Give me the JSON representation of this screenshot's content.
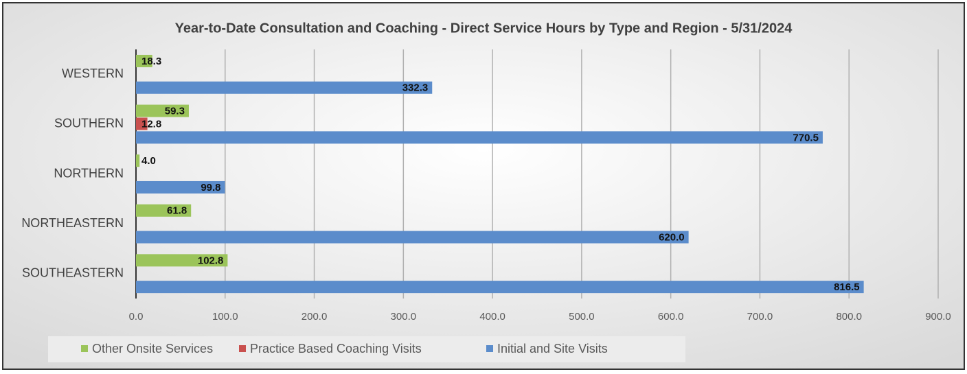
{
  "chart_data": {
    "type": "bar",
    "orientation": "horizontal",
    "title": "Year-to-Date Consultation and Coaching - Direct Service Hours by Type and Region -  5/31/2024",
    "categories": [
      "WESTERN",
      "SOUTHERN",
      "NORTHERN",
      "NORTHEASTERN",
      "SOUTHEASTERN"
    ],
    "series": [
      {
        "name": "Other Onsite Services",
        "color": "#9bc45a",
        "values": [
          18.3,
          59.3,
          4.0,
          61.8,
          102.8
        ],
        "value_labels": [
          "18.3",
          "59.3",
          "4.0",
          "61.8",
          "102.8"
        ]
      },
      {
        "name": "Practice Based Coaching Visits",
        "color": "#c9504e",
        "values": [
          null,
          12.8,
          null,
          null,
          null
        ],
        "value_labels": [
          null,
          "12.8",
          null,
          null,
          null
        ]
      },
      {
        "name": "Initial and Site Visits",
        "color": "#5b8ccb",
        "values": [
          332.3,
          770.5,
          99.8,
          620.0,
          816.5
        ],
        "value_labels": [
          "332.3",
          "770.5",
          "99.8",
          "620.0",
          "816.5"
        ]
      }
    ],
    "xlim": [
      0,
      900
    ],
    "xticks": [
      {
        "value": 0,
        "label": "0.0"
      },
      {
        "value": 100,
        "label": "100.0"
      },
      {
        "value": 200,
        "label": "200.0"
      },
      {
        "value": 300,
        "label": "300.0"
      },
      {
        "value": 400,
        "label": "400.0"
      },
      {
        "value": 500,
        "label": "500.0"
      },
      {
        "value": 600,
        "label": "600.0"
      },
      {
        "value": 700,
        "label": "700.0"
      },
      {
        "value": 800,
        "label": "800.0"
      },
      {
        "value": 900,
        "label": "900.0"
      }
    ],
    "grid": true,
    "legend": "bottom"
  }
}
